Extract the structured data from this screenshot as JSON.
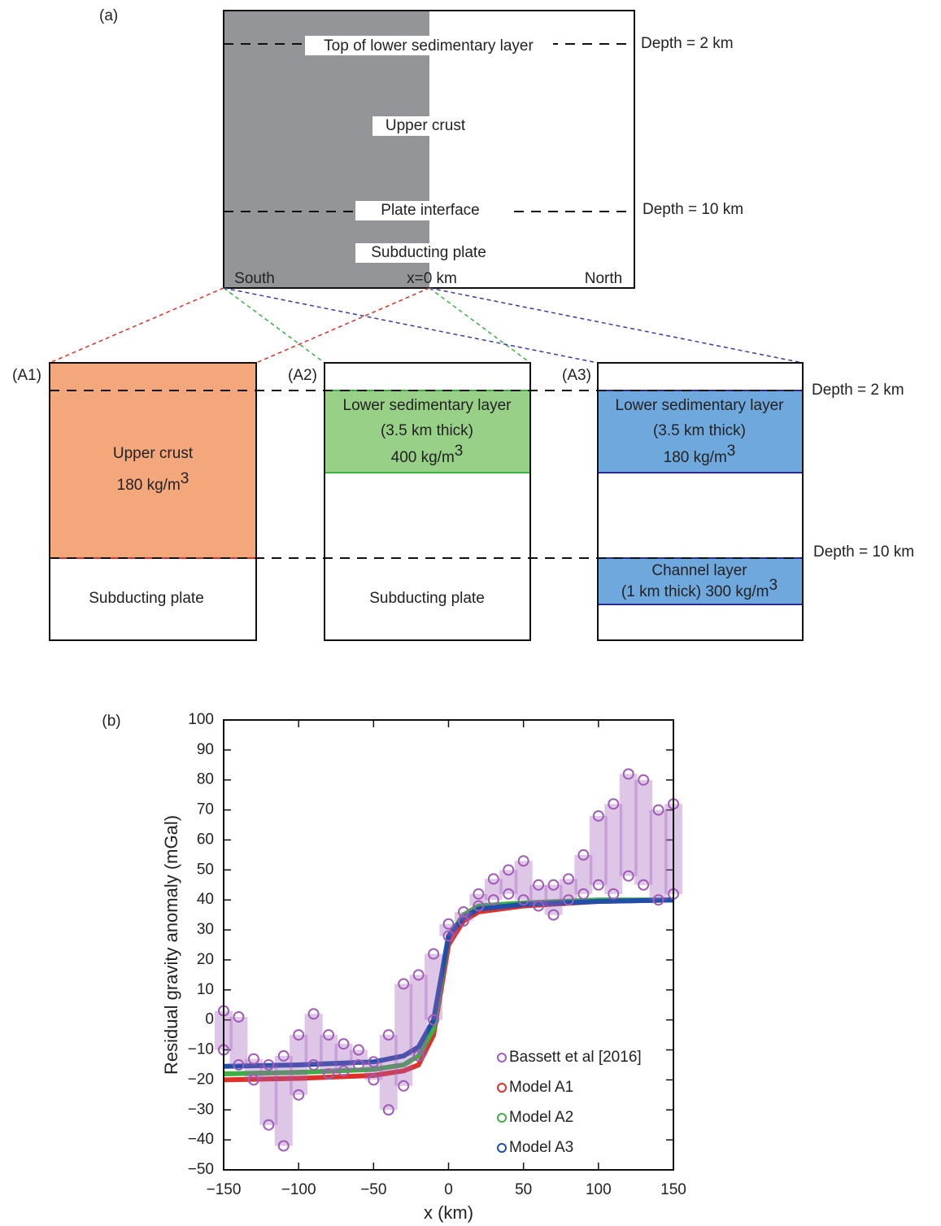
{
  "diagram": {
    "label": "(a)",
    "top": {
      "layer_top": "Top of lower sedimentary layer",
      "upper_crust": "Upper crust",
      "plate_interface": "Plate interface",
      "subducting_plate": "Subducting plate",
      "south": "South",
      "origin": "x=0 km",
      "north": "North",
      "depth_2": "Depth = 2 km",
      "depth_10": "Depth = 10 km"
    },
    "bottom": {
      "depth_2": "Depth = 2 km",
      "depth_10": "Depth = 10 km"
    },
    "models": [
      {
        "label": "(A1)",
        "layer": "Upper crust",
        "density": {
          "text": "180 kg/m",
          "sup": "3"
        },
        "below": "Subducting plate"
      },
      {
        "label": "(A2)",
        "layer": "Lower sedimentary layer",
        "thickness": "(3.5 km thick)",
        "density": {
          "text": "400 kg/m",
          "sup": "3"
        },
        "below": "Subducting plate"
      },
      {
        "label": "(A3)",
        "layer": "Lower sedimentary layer",
        "thickness": "(3.5 km thick)",
        "density": {
          "text": "180 kg/m",
          "sup": "3"
        },
        "channel": "Channel layer",
        "channel_detail": {
          "text": "(1 km thick)  300 kg/m",
          "sup": "3"
        }
      }
    ]
  },
  "chart_data": {
    "type": "scatter",
    "label": "(b)",
    "x_label": "x (km)",
    "y_label": "Residual gravity anomaly (mGal)",
    "xlim": [
      -150,
      150
    ],
    "ylim": [
      -50,
      100
    ],
    "xticks": [
      {
        "value": -150,
        "label": "−150"
      },
      {
        "value": -100,
        "label": "−100"
      },
      {
        "value": -50,
        "label": "−50"
      },
      0,
      50,
      100,
      150
    ],
    "yticks": [
      {
        "value": -50,
        "label": "−50"
      },
      {
        "value": -40,
        "label": "−40"
      },
      {
        "value": -30,
        "label": "−30"
      },
      {
        "value": -20,
        "label": "−20"
      },
      {
        "value": -10,
        "label": "−10"
      },
      0,
      10,
      20,
      30,
      40,
      50,
      60,
      70,
      80,
      90,
      100
    ],
    "legend": "lower right",
    "series": [
      {
        "name": "Model A1",
        "color": "#e0302a",
        "x": [
          -150,
          -100,
          -50,
          -30,
          -20,
          -10,
          0,
          10,
          20,
          50,
          100,
          150
        ],
        "values": [
          -20,
          -19.5,
          -18.5,
          -17,
          -15,
          -5,
          25,
          33,
          36,
          38,
          39.5,
          40
        ]
      },
      {
        "name": "Model A2",
        "color": "#3cb043",
        "x": [
          -150,
          -100,
          -50,
          -30,
          -20,
          -10,
          0,
          10,
          20,
          50,
          100,
          150
        ],
        "values": [
          -18,
          -17.5,
          -16.5,
          -15,
          -12,
          -3,
          28,
          35,
          38,
          39,
          40,
          40
        ]
      },
      {
        "name": "Model A3",
        "color": "#1f4fa8",
        "x": [
          -150,
          -100,
          -50,
          -30,
          -20,
          -10,
          0,
          10,
          20,
          50,
          100,
          150
        ],
        "values": [
          -15.5,
          -15,
          -14,
          -12,
          -9,
          0,
          28,
          34,
          37,
          38.5,
          39.5,
          40
        ]
      },
      {
        "name": "Bassett et al [2016]",
        "color": "#a05cb8",
        "x": [
          -150,
          -140,
          -130,
          -120,
          -110,
          -100,
          -90,
          -80,
          -70,
          -60,
          -50,
          -40,
          -30,
          -20,
          -10,
          0,
          10,
          20,
          30,
          40,
          50,
          60,
          70,
          80,
          90,
          100,
          110,
          120,
          130,
          140,
          150
        ],
        "values": [
          3,
          1,
          -13,
          -15,
          -12,
          -5,
          2,
          -5,
          -8,
          -10,
          -14,
          -5,
          12,
          15,
          22,
          32,
          36,
          42,
          47,
          50,
          53,
          45,
          45,
          47,
          55,
          68,
          72,
          82,
          80,
          70,
          72
        ],
        "lower": [
          -10,
          -15,
          -20,
          -35,
          -42,
          -25,
          -15,
          -18,
          -17,
          -15,
          -20,
          -30,
          -22,
          -12,
          0,
          28,
          33,
          38,
          40,
          42,
          40,
          38,
          35,
          40,
          42,
          45,
          42,
          48,
          45,
          40,
          42
        ]
      }
    ],
    "legend_order": [
      3,
      0,
      1,
      2
    ]
  }
}
